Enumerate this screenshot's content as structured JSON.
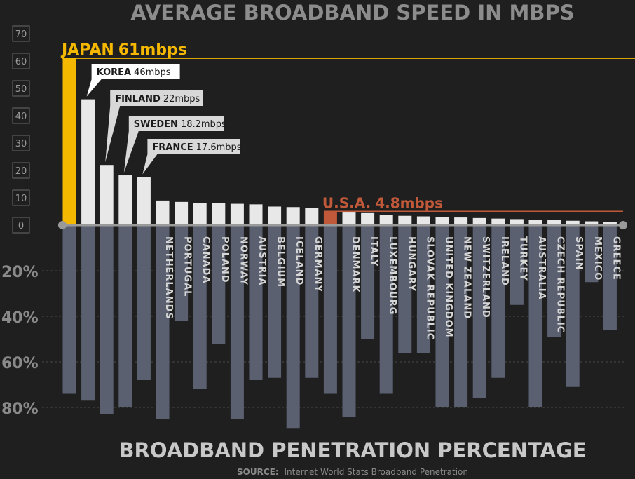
{
  "chart_data": {
    "type": "bar",
    "title": "AVERAGE BROADBAND SPEED IN MBPS",
    "subtitle": "BROADBAND PENETRATION PERCENTAGE",
    "source_label": "SOURCE:",
    "source_text": "Internet World Stats Broadband Penetration",
    "speed_axis": {
      "ylim": [
        0,
        70
      ],
      "ticks": [
        "0",
        "10",
        "20",
        "30",
        "40",
        "50",
        "60",
        "70"
      ]
    },
    "penetration_axis": {
      "ylim": [
        0,
        90
      ],
      "ticks": [
        "20%",
        "40%",
        "60%",
        "80%"
      ],
      "tick_values": [
        20,
        40,
        60,
        80
      ]
    },
    "categories": [
      "JAPAN",
      "KOREA",
      "FINLAND",
      "SWEDEN",
      "FRANCE",
      "NETHERLANDS",
      "PORTUGAL",
      "CANADA",
      "POLAND",
      "NORWAY",
      "AUSTRIA",
      "BELGIUM",
      "ICELAND",
      "GERMANY",
      "U.S.A.",
      "DENMARK",
      "ITALY",
      "LUXEMBOURG",
      "HUNGARY",
      "SLOVAK REPUBLIC",
      "UNITED KINGDOM",
      "NEW ZEALAND",
      "SWITZERLAND",
      "IRELAND",
      "TURKEY",
      "AUSTRALIA",
      "CZECH REPUBLIC",
      "SPAIN",
      "MEXICO",
      "GREECE"
    ],
    "axis_labels": [
      "",
      "",
      "",
      "",
      "",
      "NETHERLANDS",
      "PORTUGAL",
      "CANADA",
      "POLAND",
      "NORWAY",
      "AUSTRIA",
      "BELGIUM",
      "ICELAND",
      "GERMANY",
      "",
      "DENMARK",
      "ITALY",
      "LUXEMBOURG",
      "HUNGARY",
      "SLOVAK REPUBLIC",
      "UNITED KINGDOM",
      "NEW ZEALAND",
      "SWITZERLAND",
      "IRELAND",
      "TURKEY",
      "AUSTRALIA",
      "CZECH REPUBLIC",
      "SPAIN",
      "MEXICO",
      "GREECE"
    ],
    "series": [
      {
        "values": [
          61,
          46,
          22,
          18.2,
          17.6,
          9,
          8.5,
          8,
          8,
          7.8,
          7.6,
          6.8,
          6.6,
          6.4,
          4.8,
          4.6,
          4.4,
          3.6,
          3.4,
          3.2,
          3.0,
          2.8,
          2.6,
          2.4,
          2.2,
          2.0,
          1.8,
          1.6,
          1.4,
          1.2
        ]
      },
      {
        "values": [
          74,
          77,
          83,
          80,
          68,
          85,
          42,
          72,
          52,
          85,
          68,
          67,
          89,
          67,
          74,
          84,
          50,
          74,
          56,
          56,
          80,
          80,
          76,
          67,
          35,
          80,
          49,
          71,
          25,
          46
        ]
      }
    ],
    "callouts": [
      {
        "name": "JAPAN",
        "value": "61mbps"
      },
      {
        "name": "KOREA",
        "value": "46mbps"
      },
      {
        "name": "FINLAND",
        "value": "22mbps"
      },
      {
        "name": "SWEDEN",
        "value": "18.2mbps"
      },
      {
        "name": "FRANCE",
        "value": "17.6mbps"
      },
      {
        "name": "U.S.A.",
        "value": "4.8mbps"
      }
    ],
    "colors": {
      "japan": "#f5b800",
      "highlight": "#f2f2f2",
      "speed": "#e8e8e8",
      "usa": "#c0593a",
      "penetration": "#5a6070",
      "axis": "#8a8a8a",
      "grid": "#4a4a4a"
    }
  }
}
